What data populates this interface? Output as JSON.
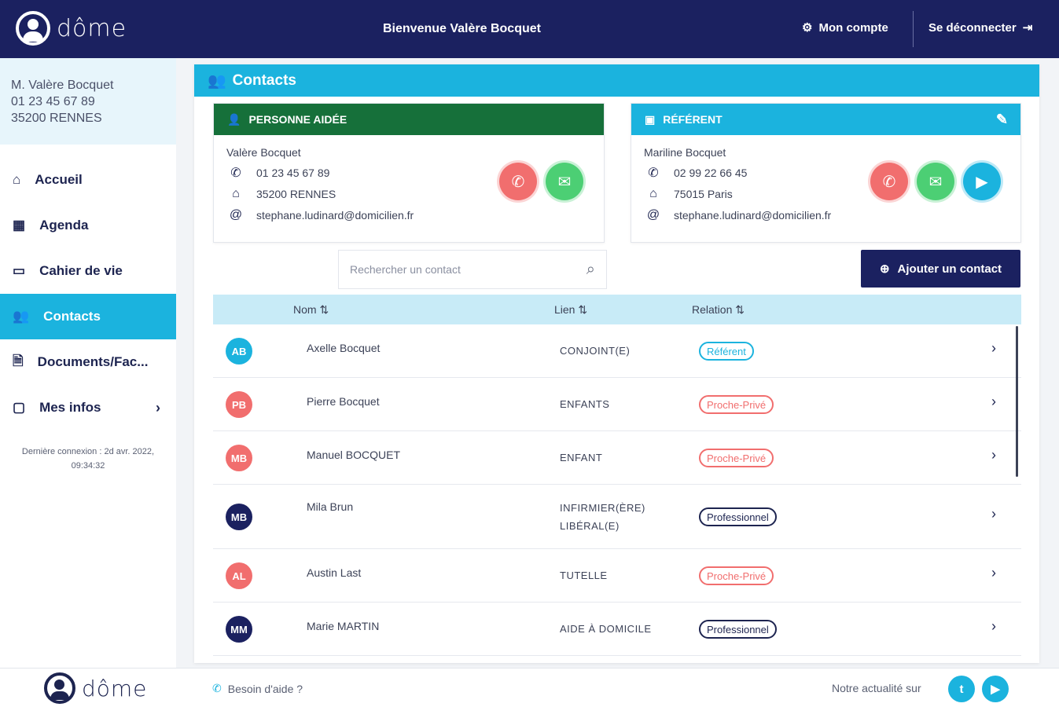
{
  "header": {
    "logo_text": "dôme",
    "welcome": "Bienvenue Valère Bocquet",
    "account_label": "Mon compte",
    "logout_label": "Se déconnecter"
  },
  "user": {
    "name": "M. Valère Bocquet",
    "phone": "01 23 45 67 89",
    "city": "35200 RENNES"
  },
  "nav": [
    {
      "label": "Accueil",
      "icon": "home-icon"
    },
    {
      "label": "Agenda",
      "icon": "calendar-icon"
    },
    {
      "label": "Cahier de vie",
      "icon": "monitor-icon"
    },
    {
      "label": "Contacts",
      "icon": "people-icon",
      "active": true
    },
    {
      "label": "Documents/Fac...",
      "icon": "document-icon"
    },
    {
      "label": "Mes infos",
      "icon": "folder-icon"
    }
  ],
  "last_login": "Dernière connexion : 2d avr. 2022, 09:34:32",
  "page": {
    "title": "Contacts"
  },
  "aidee": {
    "title": "PERSONNE AIDÉE",
    "name": "Valère Bocquet",
    "phone": "01 23 45 67 89",
    "city": "35200 RENNES",
    "email": "stephane.ludinard@domicilien.fr"
  },
  "referent": {
    "title": "RÉFÉRENT",
    "name": "Mariline Bocquet",
    "phone": "02 99 22 66 45",
    "city": "75015 Paris",
    "email": "stephane.ludinard@domicilien.fr"
  },
  "search": {
    "placeholder": "Rechercher un contact"
  },
  "add_contact_label": "Ajouter un contact",
  "table": {
    "headers": {
      "name": "Nom",
      "link": "Lien",
      "relation": "Relation"
    },
    "rows": [
      {
        "initials": "AB",
        "name": "Axelle Bocquet",
        "link": "CONJOINT(E)",
        "relation": "Référent",
        "type": "ref",
        "color": "#1bb3de"
      },
      {
        "initials": "PB",
        "name": "Pierre Bocquet",
        "link": "ENFANTS",
        "relation": "Proche-Privé",
        "type": "proche",
        "color": "#f16e6e"
      },
      {
        "initials": "MB",
        "name": "Manuel BOCQUET",
        "link": "ENFANT",
        "relation": "Proche-Privé",
        "type": "proche",
        "color": "#f16e6e"
      },
      {
        "initials": "MB",
        "name": "Mila Brun",
        "link": "INFIRMIER(ÈRE) LIBÉRAL(E)",
        "relation": "Professionnel",
        "type": "pro",
        "color": "#1b2160"
      },
      {
        "initials": "AL",
        "name": "Austin Last",
        "link": "TUTELLE",
        "relation": "Proche-Privé",
        "type": "proche",
        "color": "#f16e6e"
      },
      {
        "initials": "MM",
        "name": "Marie MARTIN",
        "link": "AIDE À DOMICILE",
        "relation": "Professionnel",
        "type": "pro",
        "color": "#1b2160"
      }
    ]
  },
  "footer": {
    "logo_text": "dôme",
    "help": "Besoin d'aide ?",
    "news": "Notre actualité sur"
  },
  "colors": {
    "navy": "#1b2160",
    "cyan": "#1bb3de",
    "green_header": "#16703a",
    "red": "#f16e6e",
    "green": "#4ccf74"
  }
}
